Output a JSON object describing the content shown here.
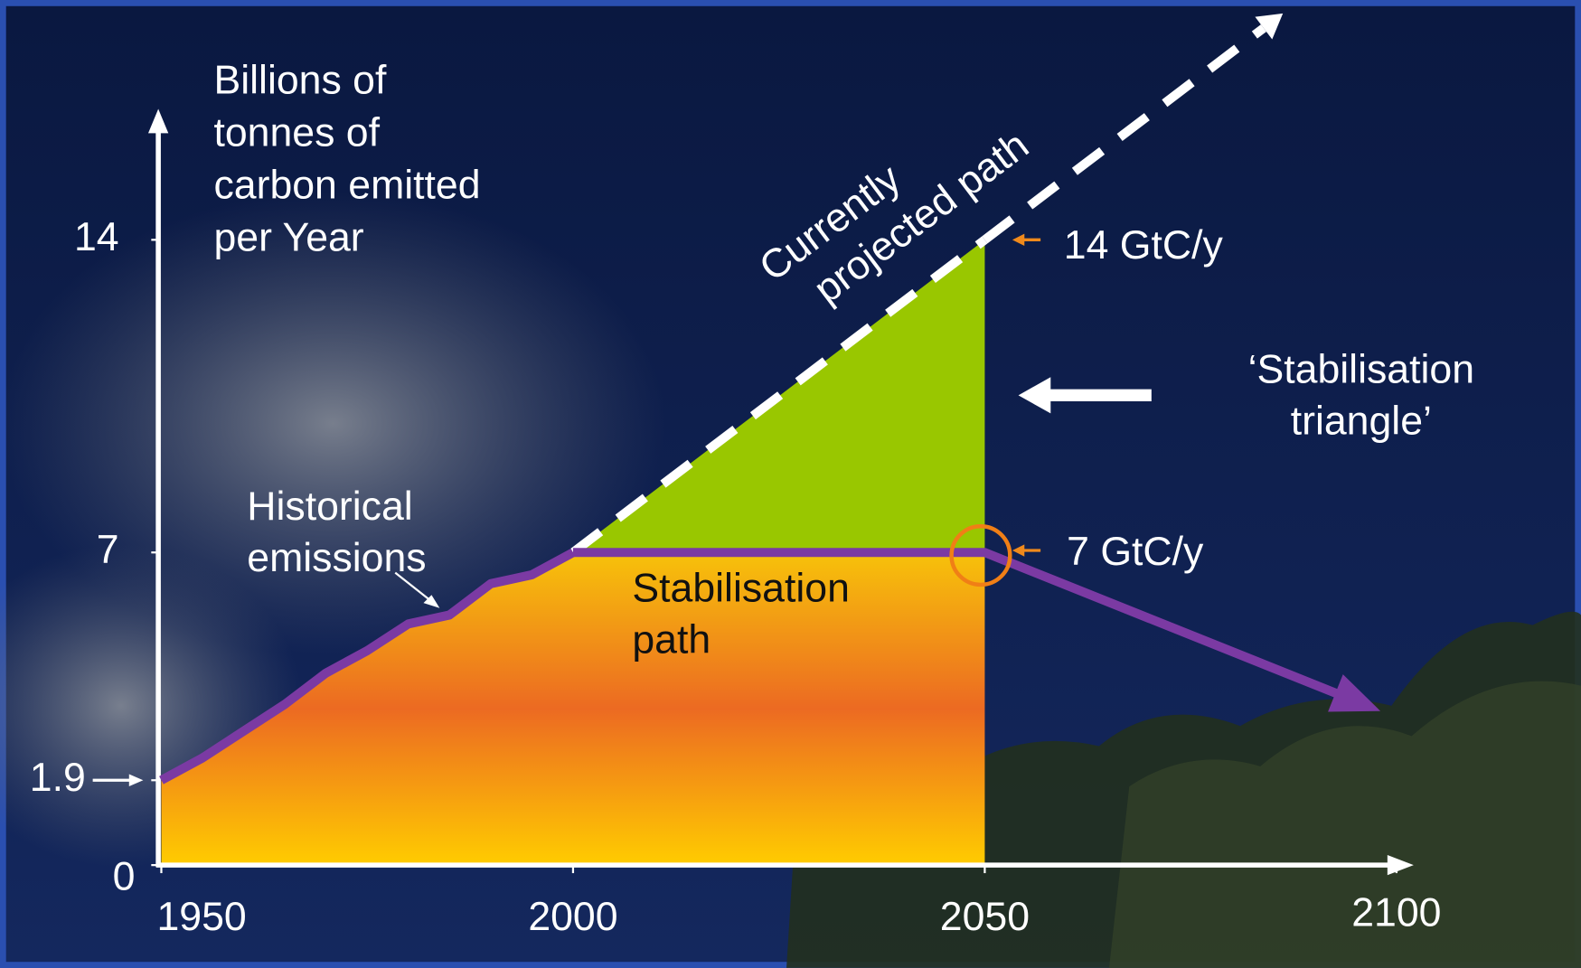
{
  "chart_data": {
    "type": "line",
    "ylabel": [
      "Billions of",
      "tonnes of",
      "carbon emitted",
      "per Year"
    ],
    "xlim": [
      1950,
      2100
    ],
    "xticks": [
      1950,
      2000,
      2050,
      2100
    ],
    "ylim": [
      0,
      15
    ],
    "yticks": [
      0,
      1.9,
      7,
      14
    ],
    "series": [
      {
        "name": "Historical emissions",
        "color": "#7b3aa3",
        "x": [
          1950,
          1955,
          1960,
          1965,
          1970,
          1975,
          1980,
          1985,
          1990,
          1995,
          2000
        ],
        "values": [
          1.9,
          2.4,
          3.0,
          3.6,
          4.3,
          4.8,
          5.4,
          5.6,
          6.3,
          6.5,
          7
        ]
      },
      {
        "name": "Currently projected path",
        "color": "#ffffff",
        "x": [
          2000,
          2050
        ],
        "values": [
          7,
          14
        ]
      },
      {
        "name": "Stabilisation path",
        "color": "#7b3aa3",
        "x": [
          2000,
          2050,
          2096
        ],
        "values": [
          7,
          7,
          3.6
        ]
      }
    ],
    "annotations": {
      "historical": [
        "Historical",
        "emissions"
      ],
      "projected": [
        "Currently",
        "projected path"
      ],
      "stabilisation": [
        "Stabilisation",
        "path"
      ],
      "triangle": [
        "‘Stabilisation",
        "triangle’"
      ],
      "high": "14 GtC/y",
      "low": "7 GtC/y"
    }
  }
}
